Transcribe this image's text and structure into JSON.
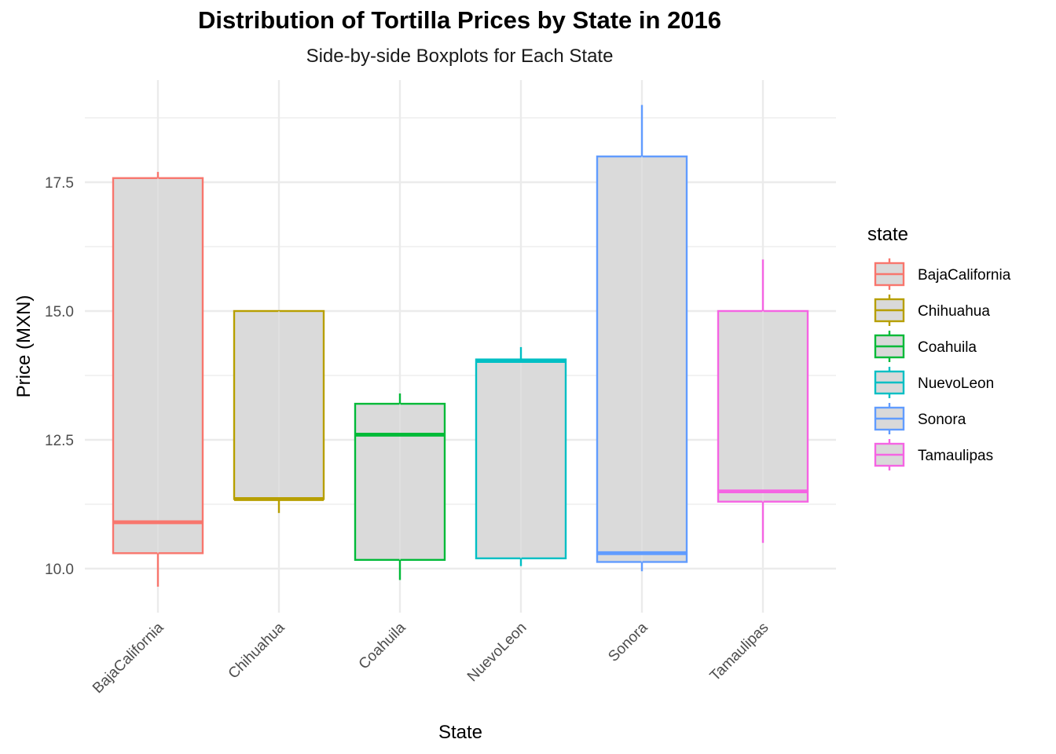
{
  "chart_data": {
    "type": "boxplot",
    "title": "Distribution of Tortilla Prices by State in 2016",
    "subtitle": "Side-by-side Boxplots for Each State",
    "xlabel": "State",
    "ylabel": "Price (MXN)",
    "ylim": [
      9.2,
      19.8
    ],
    "yticks": [
      10.0,
      12.5,
      15.0,
      17.5
    ],
    "ytick_labels": [
      "10.0",
      "12.5",
      "15.0",
      "17.5"
    ],
    "grid": true,
    "legend": {
      "title": "state",
      "position": "right"
    },
    "categories": [
      "BajaCalifornia",
      "Chihuahua",
      "Coahuila",
      "NuevoLeon",
      "Sonora",
      "Tamaulipas"
    ],
    "series": [
      {
        "name": "BajaCalifornia",
        "color": "#F8766D",
        "whisker_low": 9.65,
        "q1": 10.3,
        "median": 10.9,
        "q3": 17.58,
        "whisker_high": 17.7
      },
      {
        "name": "Chihuahua",
        "color": "#B79F00",
        "whisker_low": 11.08,
        "q1": 11.35,
        "median": 11.35,
        "q3": 15.0,
        "whisker_high": 15.0
      },
      {
        "name": "Coahuila",
        "color": "#00BA38",
        "whisker_low": 9.78,
        "q1": 10.17,
        "median": 12.6,
        "q3": 13.2,
        "whisker_high": 13.4
      },
      {
        "name": "NuevoLeon",
        "color": "#00BFC4",
        "whisker_low": 10.05,
        "q1": 10.2,
        "median": 14.03,
        "q3": 14.06,
        "whisker_high": 14.3
      },
      {
        "name": "Sonora",
        "color": "#619CFF",
        "whisker_low": 9.95,
        "q1": 10.13,
        "median": 10.3,
        "q3": 18.0,
        "whisker_high": 19.0
      },
      {
        "name": "Tamaulipas",
        "color": "#F564E3",
        "whisker_low": 10.5,
        "q1": 11.3,
        "median": 11.5,
        "q3": 15.0,
        "whisker_high": 16.0
      }
    ],
    "box_fill": "#D9D9D9",
    "grid_color": "#EBEBEB"
  }
}
